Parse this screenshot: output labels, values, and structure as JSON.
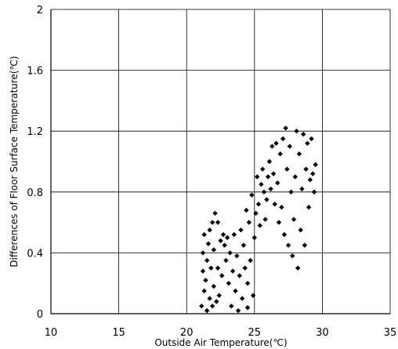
{
  "chart_data": {
    "type": "scatter",
    "xlabel": "Outside Air Temperature(℃)",
    "ylabel": "Differences of Floor Surface Temperature(℃)",
    "xlim": [
      10,
      35
    ],
    "ylim": [
      0,
      2
    ],
    "xticks": [
      "10",
      "15",
      "20",
      "25",
      "30",
      "35"
    ],
    "yticks": [
      "0",
      "0.4",
      "0.8",
      "1.2",
      "1.6",
      "2"
    ],
    "grid": true,
    "marker_color": "#000000",
    "series": [
      {
        "points": [
          [
            21.1,
            0.05
          ],
          [
            21.2,
            0.28
          ],
          [
            21.2,
            0.4
          ],
          [
            21.3,
            0.15
          ],
          [
            21.3,
            0.52
          ],
          [
            21.4,
            0.22
          ],
          [
            21.5,
            0.02
          ],
          [
            21.5,
            0.35
          ],
          [
            21.6,
            0.46
          ],
          [
            21.7,
            0.1
          ],
          [
            21.7,
            0.55
          ],
          [
            21.8,
            0.3
          ],
          [
            21.9,
            0.05
          ],
          [
            21.9,
            0.6
          ],
          [
            22.0,
            0.18
          ],
          [
            22.0,
            0.42
          ],
          [
            22.1,
            0.66
          ],
          [
            22.2,
            0.08
          ],
          [
            22.3,
            0.3
          ],
          [
            22.3,
            0.6
          ],
          [
            22.4,
            0.12
          ],
          [
            22.5,
            0.48
          ],
          [
            22.6,
            0.25
          ],
          [
            22.7,
            0.52
          ],
          [
            22.8,
            0.45
          ],
          [
            22.9,
            0.35
          ],
          [
            23.0,
            0.5
          ],
          [
            23.1,
            0.2
          ],
          [
            23.2,
            0.4
          ],
          [
            23.3,
            0.05
          ],
          [
            23.4,
            0.28
          ],
          [
            23.5,
            0.52
          ],
          [
            23.6,
            0.15
          ],
          [
            23.7,
            0.38
          ],
          [
            23.8,
            0.02
          ],
          [
            23.9,
            0.25
          ],
          [
            24.0,
            0.55
          ],
          [
            24.1,
            0.1
          ],
          [
            24.2,
            0.45
          ],
          [
            24.3,
            0.3
          ],
          [
            24.4,
            0.68
          ],
          [
            24.5,
            0.04
          ],
          [
            24.5,
            0.2
          ],
          [
            24.6,
            0.6
          ],
          [
            24.7,
            0.35
          ],
          [
            24.8,
            0.78
          ],
          [
            24.9,
            0.12
          ],
          [
            25.0,
            0.5
          ],
          [
            25.1,
            0.66
          ],
          [
            25.2,
            0.9
          ],
          [
            25.3,
            0.72
          ],
          [
            25.4,
            0.58
          ],
          [
            25.5,
            0.85
          ],
          [
            25.6,
            0.95
          ],
          [
            25.7,
            0.8
          ],
          [
            25.8,
            0.62
          ],
          [
            25.9,
            0.75
          ],
          [
            26.0,
            0.9
          ],
          [
            26.1,
            1.0
          ],
          [
            26.2,
            0.82
          ],
          [
            26.3,
            1.1
          ],
          [
            26.4,
            0.92
          ],
          [
            26.5,
            0.72
          ],
          [
            26.6,
            1.12
          ],
          [
            26.7,
            0.86
          ],
          [
            26.8,
            0.6
          ],
          [
            26.9,
            1.05
          ],
          [
            27.0,
            0.7
          ],
          [
            27.1,
            1.15
          ],
          [
            27.2,
            0.52
          ],
          [
            27.3,
            1.22
          ],
          [
            27.4,
            0.95
          ],
          [
            27.5,
            0.45
          ],
          [
            27.6,
            1.1
          ],
          [
            27.7,
            0.8
          ],
          [
            27.8,
            0.38
          ],
          [
            27.9,
            0.62
          ],
          [
            28.0,
            0.9
          ],
          [
            28.1,
            1.2
          ],
          [
            28.2,
            0.3
          ],
          [
            28.3,
            1.05
          ],
          [
            28.4,
            0.55
          ],
          [
            28.5,
            0.82
          ],
          [
            28.6,
            1.18
          ],
          [
            28.7,
            0.45
          ],
          [
            28.8,
            0.95
          ],
          [
            28.9,
            1.12
          ],
          [
            29.0,
            0.7
          ],
          [
            29.1,
            0.88
          ],
          [
            29.2,
            1.15
          ],
          [
            29.3,
            0.92
          ],
          [
            29.4,
            0.8
          ],
          [
            29.5,
            0.98
          ]
        ]
      }
    ]
  }
}
